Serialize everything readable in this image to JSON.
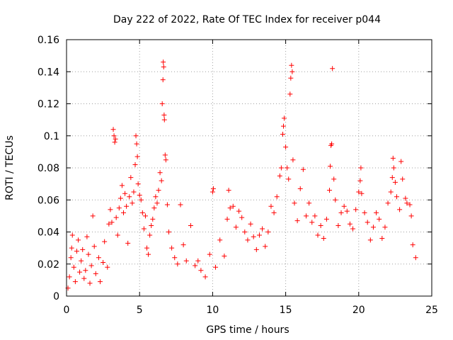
{
  "chart_data": {
    "type": "scatter",
    "title": "Day 222 of 2022, Rate Of TEC Index for receiver p044",
    "xlabel": "GPS time / hours",
    "ylabel": "ROTI / TECUs",
    "xlim": [
      0,
      25
    ],
    "ylim": [
      0,
      0.16
    ],
    "x_ticks": [
      0,
      5,
      10,
      15,
      20,
      25
    ],
    "y_ticks": [
      0,
      0.02,
      0.04,
      0.06,
      0.08,
      0.1,
      0.12,
      0.14,
      0.16
    ],
    "x_tick_labels": [
      "0",
      "5",
      "10",
      "15",
      "20",
      "25"
    ],
    "y_tick_labels": [
      "0",
      "0.02",
      "0.04",
      "0.06",
      "0.08",
      "0.1",
      "0.12",
      "0.14",
      "0.16"
    ],
    "grid": true,
    "marker": "+",
    "marker_color": "#ff0000",
    "series": [
      {
        "points": [
          [
            0.1,
            0.005
          ],
          [
            0.2,
            0.012
          ],
          [
            0.3,
            0.024
          ],
          [
            0.35,
            0.03
          ],
          [
            0.4,
            0.038
          ],
          [
            0.5,
            0.018
          ],
          [
            0.6,
            0.009
          ],
          [
            0.7,
            0.028
          ],
          [
            0.8,
            0.035
          ],
          [
            0.9,
            0.015
          ],
          [
            1.0,
            0.022
          ],
          [
            1.1,
            0.029
          ],
          [
            1.2,
            0.011
          ],
          [
            1.3,
            0.016
          ],
          [
            1.4,
            0.037
          ],
          [
            1.5,
            0.026
          ],
          [
            1.6,
            0.008
          ],
          [
            1.7,
            0.019
          ],
          [
            1.8,
            0.05
          ],
          [
            1.9,
            0.031
          ],
          [
            2.0,
            0.014
          ],
          [
            2.2,
            0.024
          ],
          [
            2.3,
            0.009
          ],
          [
            2.5,
            0.021
          ],
          [
            2.6,
            0.034
          ],
          [
            2.8,
            0.018
          ],
          [
            2.9,
            0.045
          ],
          [
            3.0,
            0.054
          ],
          [
            3.1,
            0.046
          ],
          [
            3.2,
            0.104
          ],
          [
            3.25,
            0.1
          ],
          [
            3.3,
            0.096
          ],
          [
            3.35,
            0.098
          ],
          [
            3.4,
            0.049
          ],
          [
            3.5,
            0.038
          ],
          [
            3.6,
            0.055
          ],
          [
            3.7,
            0.061
          ],
          [
            3.8,
            0.069
          ],
          [
            3.9,
            0.052
          ],
          [
            4.0,
            0.064
          ],
          [
            4.1,
            0.056
          ],
          [
            4.2,
            0.033
          ],
          [
            4.3,
            0.062
          ],
          [
            4.4,
            0.074
          ],
          [
            4.5,
            0.058
          ],
          [
            4.6,
            0.065
          ],
          [
            4.7,
            0.082
          ],
          [
            4.75,
            0.1
          ],
          [
            4.8,
            0.095
          ],
          [
            4.85,
            0.087
          ],
          [
            4.9,
            0.07
          ],
          [
            5.0,
            0.063
          ],
          [
            5.1,
            0.06
          ],
          [
            5.2,
            0.052
          ],
          [
            5.3,
            0.042
          ],
          [
            5.4,
            0.05
          ],
          [
            5.5,
            0.03
          ],
          [
            5.6,
            0.026
          ],
          [
            5.7,
            0.038
          ],
          [
            5.8,
            0.044
          ],
          [
            5.9,
            0.048
          ],
          [
            6.0,
            0.055
          ],
          [
            6.1,
            0.062
          ],
          [
            6.2,
            0.058
          ],
          [
            6.3,
            0.066
          ],
          [
            6.4,
            0.077
          ],
          [
            6.5,
            0.072
          ],
          [
            6.55,
            0.12
          ],
          [
            6.6,
            0.135
          ],
          [
            6.62,
            0.146
          ],
          [
            6.65,
            0.143
          ],
          [
            6.68,
            0.113
          ],
          [
            6.7,
            0.11
          ],
          [
            6.75,
            0.088
          ],
          [
            6.8,
            0.085
          ],
          [
            6.9,
            0.057
          ],
          [
            7.0,
            0.04
          ],
          [
            7.2,
            0.03
          ],
          [
            7.4,
            0.024
          ],
          [
            7.6,
            0.02
          ],
          [
            7.8,
            0.057
          ],
          [
            8.0,
            0.032
          ],
          [
            8.2,
            0.022
          ],
          [
            8.5,
            0.044
          ],
          [
            8.8,
            0.019
          ],
          [
            9.0,
            0.022
          ],
          [
            9.2,
            0.016
          ],
          [
            9.5,
            0.012
          ],
          [
            9.8,
            0.026
          ],
          [
            10.0,
            0.065
          ],
          [
            10.05,
            0.067
          ],
          [
            10.2,
            0.018
          ],
          [
            10.5,
            0.035
          ],
          [
            10.8,
            0.025
          ],
          [
            11.0,
            0.048
          ],
          [
            11.1,
            0.066
          ],
          [
            11.2,
            0.055
          ],
          [
            11.4,
            0.056
          ],
          [
            11.6,
            0.043
          ],
          [
            11.8,
            0.053
          ],
          [
            12.0,
            0.049
          ],
          [
            12.2,
            0.04
          ],
          [
            12.4,
            0.035
          ],
          [
            12.6,
            0.045
          ],
          [
            12.8,
            0.037
          ],
          [
            13.0,
            0.029
          ],
          [
            13.2,
            0.038
          ],
          [
            13.4,
            0.042
          ],
          [
            13.6,
            0.031
          ],
          [
            13.8,
            0.04
          ],
          [
            14.0,
            0.056
          ],
          [
            14.2,
            0.052
          ],
          [
            14.4,
            0.062
          ],
          [
            14.6,
            0.075
          ],
          [
            14.7,
            0.08
          ],
          [
            14.8,
            0.101
          ],
          [
            14.85,
            0.106
          ],
          [
            14.9,
            0.111
          ],
          [
            15.0,
            0.093
          ],
          [
            15.1,
            0.08
          ],
          [
            15.2,
            0.073
          ],
          [
            15.3,
            0.126
          ],
          [
            15.35,
            0.136
          ],
          [
            15.4,
            0.144
          ],
          [
            15.45,
            0.14
          ],
          [
            15.5,
            0.085
          ],
          [
            15.6,
            0.058
          ],
          [
            15.8,
            0.047
          ],
          [
            16.0,
            0.067
          ],
          [
            16.2,
            0.079
          ],
          [
            16.4,
            0.05
          ],
          [
            16.6,
            0.058
          ],
          [
            16.8,
            0.046
          ],
          [
            17.0,
            0.05
          ],
          [
            17.2,
            0.038
          ],
          [
            17.4,
            0.044
          ],
          [
            17.6,
            0.036
          ],
          [
            17.8,
            0.048
          ],
          [
            18.0,
            0.066
          ],
          [
            18.05,
            0.081
          ],
          [
            18.1,
            0.094
          ],
          [
            18.15,
            0.095
          ],
          [
            18.2,
            0.142
          ],
          [
            18.3,
            0.073
          ],
          [
            18.4,
            0.06
          ],
          [
            18.6,
            0.044
          ],
          [
            18.8,
            0.052
          ],
          [
            19.0,
            0.056
          ],
          [
            19.2,
            0.053
          ],
          [
            19.4,
            0.045
          ],
          [
            19.6,
            0.042
          ],
          [
            19.8,
            0.054
          ],
          [
            20.0,
            0.065
          ],
          [
            20.1,
            0.072
          ],
          [
            20.15,
            0.08
          ],
          [
            20.2,
            0.064
          ],
          [
            20.4,
            0.052
          ],
          [
            20.6,
            0.046
          ],
          [
            20.8,
            0.035
          ],
          [
            21.0,
            0.043
          ],
          [
            21.2,
            0.052
          ],
          [
            21.4,
            0.048
          ],
          [
            21.6,
            0.036
          ],
          [
            21.8,
            0.043
          ],
          [
            22.0,
            0.058
          ],
          [
            22.2,
            0.065
          ],
          [
            22.3,
            0.074
          ],
          [
            22.35,
            0.086
          ],
          [
            22.4,
            0.08
          ],
          [
            22.5,
            0.071
          ],
          [
            22.6,
            0.062
          ],
          [
            22.8,
            0.054
          ],
          [
            22.9,
            0.084
          ],
          [
            23.0,
            0.073
          ],
          [
            23.2,
            0.061
          ],
          [
            23.3,
            0.058
          ],
          [
            23.5,
            0.057
          ],
          [
            23.6,
            0.05
          ],
          [
            23.7,
            0.032
          ],
          [
            23.9,
            0.024
          ]
        ]
      }
    ]
  }
}
